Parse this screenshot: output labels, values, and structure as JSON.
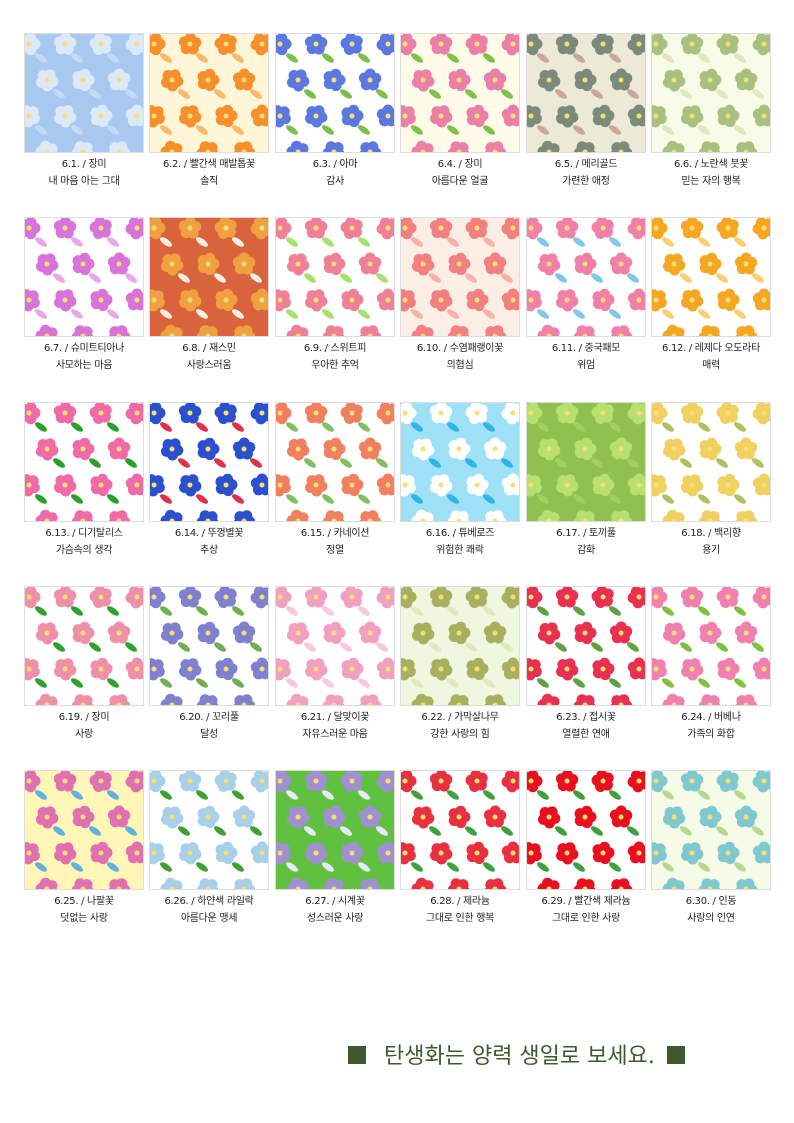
{
  "tiles": [
    {
      "date": "6.1. / 장미",
      "meaning": "내 마음 아는 그대",
      "bg": "#a9c8ef",
      "flower": "#dbe9fb",
      "accent": "#c3daf6"
    },
    {
      "date": "6.2. / 빨간색 매발톱꽃",
      "meaning": "솔직",
      "bg": "#fff6d8",
      "flower": "#f7902c",
      "accent": "#f9b86a"
    },
    {
      "date": "6.3. / 아마",
      "meaning": "감사",
      "bg": "#ffffff",
      "flower": "#5a78e0",
      "accent": "#7bc04a"
    },
    {
      "date": "6.4. / 장미",
      "meaning": "아름다운 얼굴",
      "bg": "#fffbe8",
      "flower": "#ea7fa8",
      "accent": "#7fc24a"
    },
    {
      "date": "6.5. / 메리골드",
      "meaning": "가련한 애정",
      "bg": "#ece9d6",
      "flower": "#7c8a7c",
      "accent": "#c8a898"
    },
    {
      "date": "6.6. / 노란색 붓꽃",
      "meaning": "믿는 자의 행복",
      "bg": "#f8fbe8",
      "flower": "#a8c080",
      "accent": "#e0e8c0"
    },
    {
      "date": "6.7. / 슈미트티아나",
      "meaning": "사모하는 마음",
      "bg": "#ffffff",
      "flower": "#d873d8",
      "accent": "#e8a8e8"
    },
    {
      "date": "6.8. / 재스민",
      "meaning": "사랑스러움",
      "bg": "#d9633d",
      "flower": "#f0a040",
      "accent": "#f6f0e0"
    },
    {
      "date": "6.9. / 스위트피",
      "meaning": "우아한 추억",
      "bg": "#ffffff",
      "flower": "#f08098",
      "accent": "#a8e070"
    },
    {
      "date": "6.10. / 수염패랭이꽃",
      "meaning": "의협심",
      "bg": "#fbeee5",
      "flower": "#f28080",
      "accent": "#f8b0a8"
    },
    {
      "date": "6.11. / 중국패모",
      "meaning": "위엄",
      "bg": "#ffffff",
      "flower": "#f080a8",
      "accent": "#80c8e8"
    },
    {
      "date": "6.12. / 레제다 오도라타",
      "meaning": "매력",
      "bg": "#ffffff",
      "flower": "#f5a623",
      "accent": "#f8d070"
    },
    {
      "date": "6.13. / 디기탈리스",
      "meaning": "가슴속의 생각",
      "bg": "#ffffff",
      "flower": "#f06aa8",
      "accent": "#2aa02a"
    },
    {
      "date": "6.14. / 뚜껑별꽃",
      "meaning": "추상",
      "bg": "#ffffff",
      "flower": "#2a50d0",
      "accent": "#e0304a"
    },
    {
      "date": "6.15. / 카네이션",
      "meaning": "정열",
      "bg": "#ffffff",
      "flower": "#f08060",
      "accent": "#80c060"
    },
    {
      "date": "6.16. / 튜베로즈",
      "meaning": "위험한 쾌락",
      "bg": "#9ee0f5",
      "flower": "#ffffff",
      "accent": "#2eb5e6"
    },
    {
      "date": "6.17. / 토끼풀",
      "meaning": "감화",
      "bg": "#8fc050",
      "flower": "#b8e070",
      "accent": "#a0d060"
    },
    {
      "date": "6.18. / 백리향",
      "meaning": "용기",
      "bg": "#ffffff",
      "flower": "#f0d060",
      "accent": "#b0c060"
    },
    {
      "date": "6.19. / 장미",
      "meaning": "사랑",
      "bg": "#ffffff",
      "flower": "#f090a8",
      "accent": "#30a030"
    },
    {
      "date": "6.20. / 꼬리풀",
      "meaning": "달성",
      "bg": "#ffffff",
      "flower": "#8080d0",
      "accent": "#70b050"
    },
    {
      "date": "6.21. / 달맞이꽃",
      "meaning": "자유스러운 마음",
      "bg": "#ffffff",
      "flower": "#f0a0c0",
      "accent": "#f8c8dc"
    },
    {
      "date": "6.22. / 가막살나무",
      "meaning": "강한 사랑의 힘",
      "bg": "#f0f7e0",
      "flower": "#a8b060",
      "accent": "#e0e8c0"
    },
    {
      "date": "6.23. / 접시꽃",
      "meaning": "열렬한 연애",
      "bg": "#ffffff",
      "flower": "#e83050",
      "accent": "#60a040"
    },
    {
      "date": "6.24. / 버베나",
      "meaning": "가족의 화합",
      "bg": "#ffffff",
      "flower": "#f080b0",
      "accent": "#80c040"
    },
    {
      "date": "6.25. / 나팔꽃",
      "meaning": "덧없는 사랑",
      "bg": "#fff6b8",
      "flower": "#e070b0",
      "accent": "#60b0e0"
    },
    {
      "date": "6.26. / 하얀색 라일락",
      "meaning": "아름다운 맹세",
      "bg": "#ffffff",
      "flower": "#a8d0e8",
      "accent": "#40a030"
    },
    {
      "date": "6.27. / 시계꽃",
      "meaning": "성스러운 사랑",
      "bg": "#60c040",
      "flower": "#a090d0",
      "accent": "#e8e8f8"
    },
    {
      "date": "6.28. / 제라늄",
      "meaning": "그대로 인한 행복",
      "bg": "#ffffff",
      "flower": "#e83040",
      "accent": "#40a040"
    },
    {
      "date": "6.29. / 빨간색 제라늄",
      "meaning": "그대로 인한 사랑",
      "bg": "#ffffff",
      "flower": "#e81020",
      "accent": "#40a040"
    },
    {
      "date": "6.30. / 인동",
      "meaning": "사랑의 인연",
      "bg": "#f6fbe8",
      "flower": "#80c8d0",
      "accent": "#b8d890"
    }
  ],
  "footer": {
    "text": "탄생화는 양력 생일로 보세요.",
    "color": "#3c5a2e"
  }
}
